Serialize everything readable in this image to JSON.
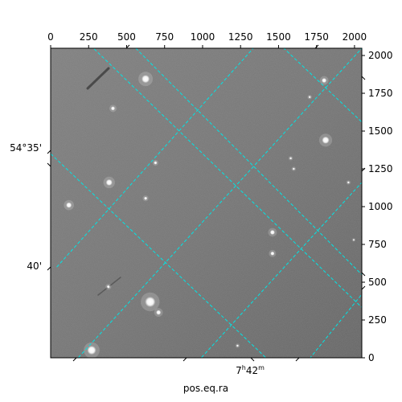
{
  "chart_data": {
    "type": "image",
    "xlabel": "pos.eq.ra",
    "ylabel": "",
    "xlim": [
      0,
      2048
    ],
    "ylim": [
      0,
      2048
    ],
    "x_ticks": [
      0,
      250,
      500,
      750,
      1000,
      1250,
      1500,
      1750,
      2000
    ],
    "x_tick_labels": [
      "0",
      "250",
      "500",
      "750",
      "1000",
      "1250",
      "1500",
      "1750",
      "2000"
    ],
    "y_ticks": [
      0,
      250,
      500,
      750,
      1000,
      1250,
      1500,
      1750,
      2000
    ],
    "y_tick_labels": [
      "0",
      "250",
      "500",
      "750",
      "1000",
      "1250",
      "1500",
      "1750",
      "2000"
    ],
    "ra_label": {
      "hours": "7",
      "minutes": "42",
      "h_sup": "h",
      "m_sup": "m"
    },
    "dec_labels": [
      "54°35'",
      "40'"
    ],
    "grid_color": "#00e5e5",
    "image_colormap": "gray",
    "stars": [
      {
        "x": 625,
        "y": 1845,
        "r": 5
      },
      {
        "x": 1800,
        "y": 1835,
        "r": 3
      },
      {
        "x": 410,
        "y": 1650,
        "r": 2.5
      },
      {
        "x": 1810,
        "y": 1440,
        "r": 4.5
      },
      {
        "x": 690,
        "y": 1290,
        "r": 2
      },
      {
        "x": 385,
        "y": 1160,
        "r": 4
      },
      {
        "x": 120,
        "y": 1010,
        "r": 3.5
      },
      {
        "x": 625,
        "y": 1055,
        "r": 2
      },
      {
        "x": 1460,
        "y": 830,
        "r": 3
      },
      {
        "x": 1460,
        "y": 690,
        "r": 2.5
      },
      {
        "x": 380,
        "y": 470,
        "r": 2
      },
      {
        "x": 655,
        "y": 370,
        "r": 6.5
      },
      {
        "x": 710,
        "y": 300,
        "r": 3
      },
      {
        "x": 270,
        "y": 50,
        "r": 5.5
      },
      {
        "x": 1600,
        "y": 1250,
        "r": 1.5
      },
      {
        "x": 1705,
        "y": 1725,
        "r": 1.5
      },
      {
        "x": 1230,
        "y": 80,
        "r": 1.5
      },
      {
        "x": 1580,
        "y": 1320,
        "r": 1.5
      },
      {
        "x": 1960,
        "y": 1160,
        "r": 1.5
      },
      {
        "x": 1995,
        "y": 780,
        "r": 1.2
      }
    ],
    "grid_lines": [
      {
        "x1": 560,
        "y1": 2048,
        "x2": 2048,
        "y2": 550
      },
      {
        "x1": 0,
        "y1": 1350,
        "x2": 1480,
        "y2": -60
      },
      {
        "x1": -60,
        "y1": 2380,
        "x2": 2700,
        "y2": -300
      },
      {
        "x1": 1480,
        "y1": 2100,
        "x2": 2048,
        "y2": 1560
      },
      {
        "x1": 40,
        "y1": 600,
        "x2": 1380,
        "y2": 2100
      },
      {
        "x1": 90,
        "y1": -100,
        "x2": 2048,
        "y2": 2048
      },
      {
        "x1": 900,
        "y1": -100,
        "x2": 2048,
        "y2": 1160
      },
      {
        "x1": 1660,
        "y1": -60,
        "x2": 2048,
        "y2": 420
      }
    ]
  }
}
